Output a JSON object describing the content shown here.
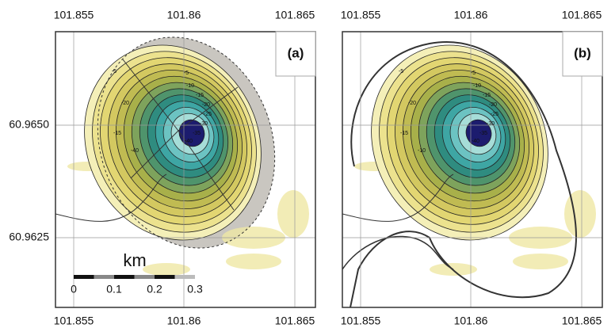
{
  "panels": [
    {
      "label": "(a)",
      "top_ticks": [
        "101.855",
        "101.86",
        "101.865"
      ],
      "bottom_ticks": [
        "101.855",
        "101.86",
        "101.865"
      ],
      "left_ticks": [
        "60.9650",
        "60.9625"
      ],
      "contour_labels": [
        "-5",
        "-10",
        "-15",
        "-20",
        "-25",
        "-30",
        "-35",
        "-40",
        "-5",
        "-20",
        "-15",
        "-40"
      ],
      "scale": {
        "unit": "km",
        "ticks": [
          "0",
          "0.1",
          "0.2",
          "0.3"
        ]
      }
    },
    {
      "label": "(b)",
      "top_ticks": [
        "101.855",
        "101.86",
        "101.865"
      ],
      "bottom_ticks": [
        "101.855",
        "101.86",
        "101.865"
      ],
      "contour_labels": [
        "-5",
        "-10",
        "-15",
        "-20",
        "-25",
        "-30",
        "-35",
        "-40",
        "-5",
        "-20",
        "-15",
        "-10"
      ]
    }
  ]
}
